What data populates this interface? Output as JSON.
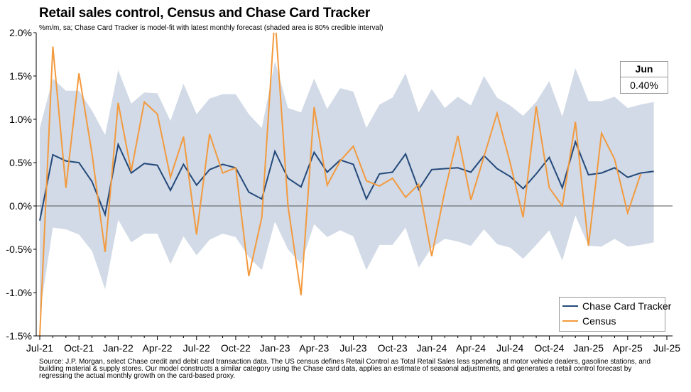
{
  "title": "Retail sales control, Census and Chase Card Tracker",
  "subtitle": "%m/m, sa; Chase Card Tracker is model-fit with latest monthly forecast (shaded area is 80% credible interval)",
  "callout": {
    "label": "Jun",
    "value": "0.40%"
  },
  "source": "Source: J.P. Morgan, select Chase credit and debit card transaction data. The US census defines Retail Control as Total Retail Sales less spending at motor vehicle dealers, gasoline stations, and building material & supply stores. Our model constructs a similar category using the Chase card data, applies an estimate of seasonal adjustments, and generates a retail control forecast by regressing the actual monthly growth on the card-based proxy.",
  "colors": {
    "tracker": "#24497a",
    "census": "#f39a3e",
    "band": "#d1dae6",
    "axis": "#000000"
  },
  "chart_data": {
    "type": "line",
    "x_tick_labels": [
      "Jul-21",
      "Oct-21",
      "Jan-22",
      "Apr-22",
      "Jul-22",
      "Oct-22",
      "Jan-23",
      "Apr-23",
      "Jul-23",
      "Oct-23",
      "Jan-24",
      "Apr-24",
      "Jul-24",
      "Oct-24",
      "Jan-25",
      "Apr-25",
      "Jul-25"
    ],
    "y_tick_labels": [
      "2.0%",
      "1.5%",
      "1.0%",
      "0.5%",
      "0.0%",
      "-0.5%",
      "-1.0%",
      "-1.5%"
    ],
    "ylim": [
      -1.5,
      2.0
    ],
    "y_ticks": [
      2.0,
      1.5,
      1.0,
      0.5,
      0.0,
      -0.5,
      -1.0,
      -1.5
    ],
    "x_tick_every": 3,
    "grid": false,
    "legend_position": "bottom-right",
    "months": [
      "Jul-21",
      "Aug-21",
      "Sep-21",
      "Oct-21",
      "Nov-21",
      "Dec-21",
      "Jan-22",
      "Feb-22",
      "Mar-22",
      "Apr-22",
      "May-22",
      "Jun-22",
      "Jul-22",
      "Aug-22",
      "Sep-22",
      "Oct-22",
      "Nov-22",
      "Dec-22",
      "Jan-23",
      "Feb-23",
      "Mar-23",
      "Apr-23",
      "May-23",
      "Jun-23",
      "Jul-23",
      "Aug-23",
      "Sep-23",
      "Oct-23",
      "Nov-23",
      "Dec-23",
      "Jan-24",
      "Feb-24",
      "Mar-24",
      "Apr-24",
      "May-24",
      "Jun-24",
      "Jul-24",
      "Aug-24",
      "Sep-24",
      "Oct-24",
      "Nov-24",
      "Dec-24",
      "Jan-25",
      "Feb-25",
      "Mar-25",
      "Apr-25",
      "May-25",
      "Jun-25"
    ],
    "series": [
      {
        "name": "Chase Card Tracker",
        "values": [
          -0.17,
          0.59,
          0.52,
          0.5,
          0.28,
          -0.1,
          0.71,
          0.38,
          0.49,
          0.47,
          0.18,
          0.48,
          0.24,
          0.42,
          0.48,
          0.44,
          0.16,
          0.08,
          0.63,
          0.32,
          0.22,
          0.62,
          0.39,
          0.53,
          0.48,
          0.08,
          0.37,
          0.39,
          0.6,
          0.19,
          0.42,
          0.43,
          0.44,
          0.39,
          0.58,
          0.43,
          0.34,
          0.2,
          0.37,
          0.56,
          0.21,
          0.74,
          0.36,
          0.38,
          0.44,
          0.33,
          0.38,
          0.4
        ]
      },
      {
        "name": "Census",
        "values": [
          -1.5,
          1.84,
          0.21,
          1.53,
          0.6,
          -0.53,
          1.19,
          0.4,
          1.2,
          1.06,
          0.33,
          0.8,
          -0.33,
          0.83,
          0.38,
          0.44,
          -0.81,
          -0.13,
          2.2,
          0.0,
          -1.03,
          1.14,
          0.24,
          0.52,
          0.69,
          0.29,
          0.23,
          0.32,
          0.1,
          0.25,
          -0.58,
          0.17,
          0.81,
          0.07,
          0.57,
          1.07,
          0.5,
          -0.13,
          1.15,
          0.21,
          0.0,
          0.97,
          -0.46,
          0.84,
          0.54,
          -0.08,
          0.37,
          null
        ]
      }
    ],
    "band": {
      "upper": [
        0.9,
        1.47,
        1.33,
        1.33,
        1.1,
        0.82,
        1.57,
        1.18,
        1.31,
        1.3,
        0.98,
        1.41,
        1.06,
        1.24,
        1.29,
        1.29,
        1.06,
        0.9,
        1.67,
        1.13,
        1.08,
        1.47,
        1.12,
        1.36,
        1.32,
        0.9,
        1.17,
        1.25,
        1.53,
        1.08,
        1.35,
        1.13,
        1.26,
        1.16,
        1.5,
        1.25,
        1.16,
        1.04,
        1.2,
        1.44,
        1.03,
        1.59,
        1.21,
        1.21,
        1.26,
        1.13,
        1.17,
        1.2
      ],
      "lower": [
        -1.24,
        -0.25,
        -0.27,
        -0.33,
        -0.52,
        -0.96,
        -0.16,
        -0.42,
        -0.32,
        -0.32,
        -0.67,
        -0.35,
        -0.57,
        -0.39,
        -0.32,
        -0.36,
        -0.59,
        -0.74,
        -0.18,
        -0.5,
        -0.67,
        -0.21,
        -0.36,
        -0.28,
        -0.35,
        -0.74,
        -0.45,
        -0.45,
        -0.25,
        -0.71,
        -0.48,
        -0.38,
        -0.41,
        -0.46,
        -0.27,
        -0.44,
        -0.48,
        -0.61,
        -0.45,
        -0.28,
        -0.63,
        -0.11,
        -0.46,
        -0.47,
        -0.38,
        -0.47,
        -0.45,
        -0.42
      ]
    }
  }
}
